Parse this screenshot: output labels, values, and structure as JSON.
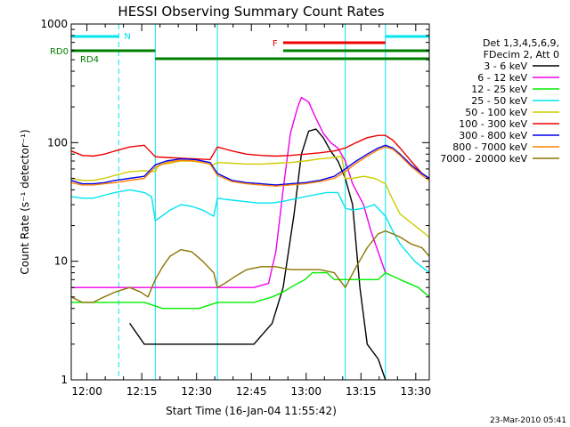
{
  "chart_data": {
    "type": "line",
    "title": "HESSI Observing Summary Count Rates",
    "xlabel": "Start Time (16-Jan-04 11:55:42)",
    "ylabel": "Count Rate (s⁻¹ detector⁻¹)",
    "y_scale": "log",
    "ylim": [
      1,
      1000
    ],
    "xlim_minutes_after_start": [
      0,
      98
    ],
    "x_ticks": [
      "12:00",
      "12:15",
      "12:30",
      "12:45",
      "13:00",
      "13:15",
      "13:30"
    ],
    "y_ticks": [
      "1",
      "10",
      "100",
      "1000"
    ],
    "legend_header": [
      "Det 1,3,4,5,6,9,",
      "FDecim 2, Att 0"
    ],
    "legend_placement": "right",
    "footer_date": "23-Mar-2010 05:41",
    "state_bars": [
      {
        "label": "N",
        "color": "#00e5ee",
        "segments": [
          [
            0,
            13
          ],
          [
            86,
            98
          ]
        ]
      },
      {
        "label": "F",
        "color": "#ee0000",
        "segments": [
          [
            58,
            86
          ]
        ]
      },
      {
        "label": "RD0",
        "color": "#007f00",
        "segments": [
          [
            0,
            23
          ],
          [
            58,
            98
          ]
        ]
      },
      {
        "label": "RD4",
        "color": "#007f00",
        "segments": [
          [
            23,
            40
          ],
          [
            40,
            75
          ],
          [
            75,
            98
          ]
        ]
      }
    ],
    "vlines": [
      {
        "color": "#00e5ee",
        "style": "solid",
        "x": [
          0,
          23,
          40,
          75,
          86
        ]
      },
      {
        "color": "#00e5ee",
        "style": "dashed",
        "x": [
          13,
          98
        ]
      }
    ],
    "series": [
      {
        "name": "3 - 6 keV",
        "color": "#000000",
        "x": [
          16,
          20,
          25,
          30,
          35,
          40,
          45,
          50,
          55,
          58,
          61,
          63,
          65,
          67,
          69,
          71,
          73,
          75,
          77,
          79,
          81,
          84,
          86
        ],
        "y": [
          3,
          2,
          2,
          2,
          2,
          2,
          2,
          2,
          3,
          6,
          25,
          80,
          125,
          130,
          110,
          85,
          70,
          50,
          30,
          6,
          2,
          1.5,
          1
        ]
      },
      {
        "name": "6 - 12 keV",
        "color": "#ee00ee",
        "x": [
          0,
          5,
          10,
          15,
          20,
          25,
          30,
          35,
          40,
          45,
          50,
          54,
          56,
          58,
          60,
          62,
          63,
          65,
          67,
          69,
          71,
          73,
          75,
          77,
          80,
          82,
          84,
          86
        ],
        "y": [
          6,
          6,
          6,
          6,
          6,
          6,
          6,
          6,
          6,
          6,
          6,
          6.5,
          12,
          40,
          120,
          200,
          240,
          220,
          160,
          120,
          100,
          90,
          70,
          45,
          30,
          18,
          12,
          8
        ]
      },
      {
        "name": "12 - 25 keV",
        "color": "#00ee00",
        "x": [
          0,
          5,
          10,
          15,
          20,
          25,
          30,
          35,
          40,
          45,
          50,
          55,
          58,
          60,
          62,
          64,
          66,
          68,
          70,
          72,
          74,
          76,
          78,
          80,
          82,
          84,
          86,
          90,
          95,
          98
        ],
        "y": [
          4.5,
          4.5,
          4.5,
          4.5,
          4.5,
          4,
          4,
          4,
          4.5,
          4.5,
          4.5,
          5,
          5.5,
          6,
          6.5,
          7,
          8,
          8,
          8,
          7,
          7,
          7,
          7,
          7,
          7,
          7,
          8,
          7,
          6,
          5
        ]
      },
      {
        "name": "25 - 50 keV",
        "color": "#00e5ee",
        "x": [
          0,
          3,
          6,
          9,
          12,
          16,
          20,
          22,
          23,
          24,
          27,
          30,
          33,
          36,
          39,
          40,
          43,
          47,
          51,
          55,
          58,
          62,
          66,
          70,
          73,
          75,
          77,
          80,
          83,
          86,
          88,
          90,
          94,
          98
        ],
        "y": [
          35,
          34,
          34,
          36,
          38,
          40,
          38,
          35,
          22,
          23,
          27,
          30,
          29,
          27,
          24,
          34,
          33,
          32,
          31,
          31,
          32,
          34,
          36,
          38,
          38,
          28,
          27,
          28,
          30,
          24,
          18,
          14,
          10,
          8
        ]
      },
      {
        "name": "50 - 100 keV",
        "color": "#cdcd00",
        "x": [
          0,
          3,
          6,
          9,
          12,
          16,
          20,
          23,
          24,
          27,
          30,
          33,
          36,
          39,
          40,
          44,
          48,
          52,
          56,
          60,
          64,
          68,
          72,
          74,
          75,
          77,
          80,
          83,
          86,
          88,
          90,
          94,
          98
        ],
        "y": [
          50,
          48,
          48,
          50,
          53,
          57,
          58,
          57,
          65,
          67,
          70,
          70,
          68,
          65,
          68,
          67,
          66,
          66,
          67,
          68,
          70,
          73,
          75,
          77,
          50,
          50,
          52,
          50,
          45,
          33,
          25,
          20,
          16
        ]
      },
      {
        "name": "100 - 300 keV",
        "color": "#ee0000",
        "x": [
          0,
          3,
          6,
          9,
          12,
          16,
          20,
          23,
          26,
          30,
          34,
          38,
          40,
          44,
          48,
          52,
          56,
          60,
          64,
          68,
          72,
          75,
          78,
          81,
          84,
          86,
          88,
          90,
          93,
          96,
          98
        ],
        "y": [
          85,
          78,
          77,
          80,
          85,
          92,
          95,
          76,
          75,
          74,
          73,
          72,
          92,
          85,
          80,
          78,
          77,
          78,
          80,
          82,
          85,
          90,
          100,
          110,
          115,
          115,
          105,
          90,
          70,
          55,
          50
        ]
      },
      {
        "name": "300 - 800 keV",
        "color": "#0000ee",
        "x": [
          0,
          3,
          6,
          9,
          12,
          16,
          20,
          23,
          26,
          30,
          34,
          38,
          40,
          44,
          48,
          52,
          56,
          60,
          64,
          68,
          72,
          75,
          78,
          81,
          84,
          86,
          88,
          90,
          93,
          96,
          98
        ],
        "y": [
          48,
          45,
          45,
          46,
          48,
          50,
          52,
          65,
          70,
          73,
          72,
          68,
          55,
          48,
          46,
          45,
          44,
          45,
          46,
          48,
          52,
          60,
          70,
          80,
          90,
          95,
          90,
          80,
          65,
          55,
          50
        ]
      },
      {
        "name": "800 - 7000 keV",
        "color": "#ff7f00",
        "x": [
          0,
          3,
          6,
          9,
          12,
          16,
          20,
          23,
          26,
          30,
          34,
          38,
          40,
          44,
          48,
          52,
          56,
          60,
          64,
          68,
          72,
          75,
          78,
          81,
          84,
          86,
          88,
          90,
          93,
          96,
          98
        ],
        "y": [
          46,
          44,
          44,
          45,
          46,
          48,
          50,
          62,
          68,
          71,
          70,
          66,
          53,
          47,
          45,
          44,
          43,
          44,
          45,
          47,
          50,
          57,
          67,
          77,
          87,
          92,
          88,
          78,
          63,
          53,
          48
        ]
      },
      {
        "name": "7000 - 20000 keV",
        "color": "#8b7500",
        "x": [
          0,
          3,
          6,
          9,
          12,
          16,
          19,
          21,
          23,
          25,
          27,
          30,
          33,
          36,
          39,
          40,
          42,
          45,
          48,
          52,
          56,
          60,
          64,
          68,
          72,
          75,
          78,
          81,
          84,
          86,
          88,
          90,
          93,
          96,
          98
        ],
        "y": [
          5,
          4.5,
          4.5,
          5,
          5.5,
          6,
          5.5,
          5,
          7,
          9,
          11,
          12.5,
          12,
          10,
          8,
          6,
          6.5,
          7.5,
          8.5,
          9,
          9,
          8.5,
          8.5,
          8.5,
          8,
          6,
          9,
          13,
          17,
          18,
          17,
          16,
          14,
          13,
          11
        ]
      }
    ]
  }
}
